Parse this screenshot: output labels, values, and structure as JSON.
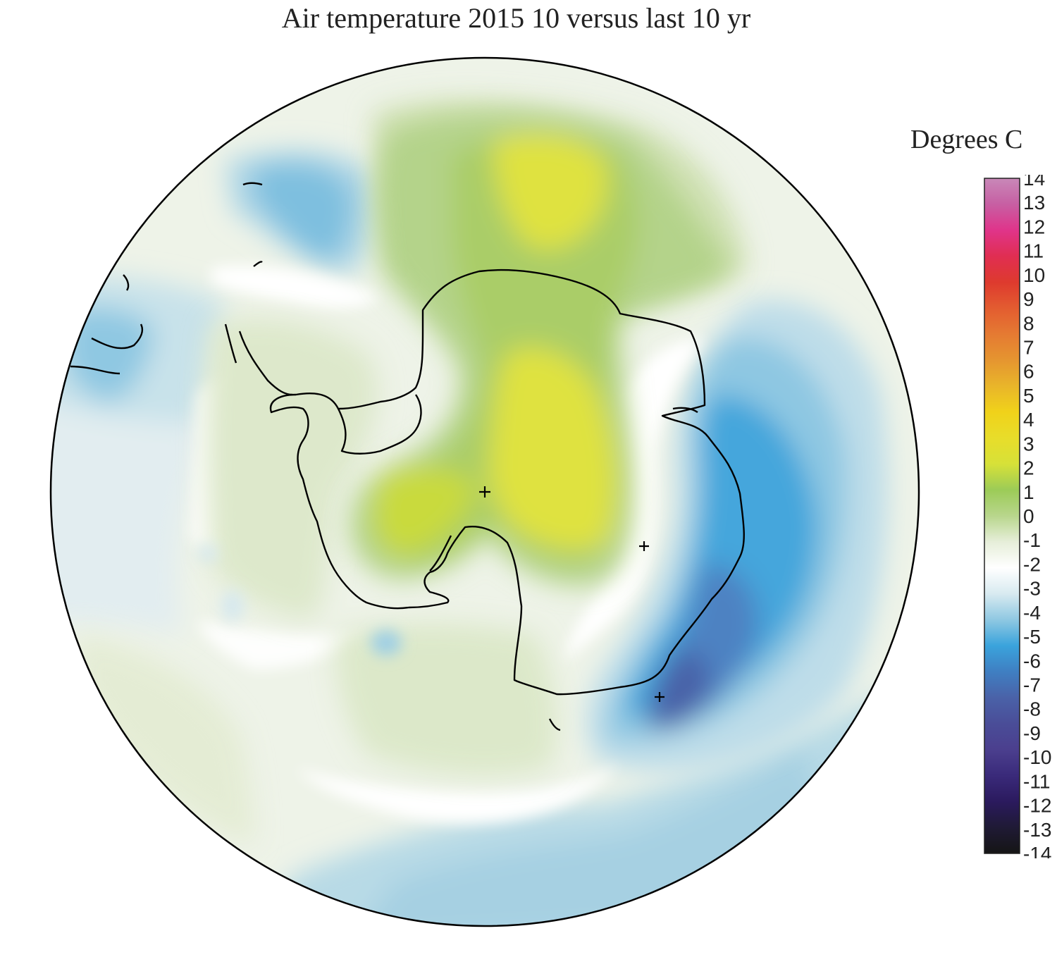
{
  "title": "Air temperature 2015 10 versus last 10 yr",
  "legend": {
    "title": "Degrees C",
    "ticks": [
      "14",
      "13",
      "12",
      "11",
      "10",
      "9",
      "8",
      "7",
      "6",
      "5",
      "4",
      "3",
      "2",
      "1",
      "0",
      "-1",
      "-2",
      "-3",
      "-4",
      "-5",
      "-6",
      "-7",
      "-8",
      "-9",
      "-10",
      "-11",
      "-12",
      "-13",
      "-14"
    ],
    "range": [
      -14,
      14
    ],
    "colors": [
      "#151515",
      "#1f1a35",
      "#2b1a5e",
      "#3a2a7a",
      "#4b3f8e",
      "#4a4d98",
      "#4a62a8",
      "#3f7fc2",
      "#3aa3dc",
      "#8fc8e2",
      "#d8eaf0",
      "#ffffff",
      "#e6eed9",
      "#b8d68c",
      "#9ccb57",
      "#d7e138",
      "#e8dd2a",
      "#f0d21a",
      "#e9b52a",
      "#e59530",
      "#e57a32",
      "#e35c30",
      "#de3a2e",
      "#e02e52",
      "#e0348a",
      "#c75fa3",
      "#c888b8"
    ]
  },
  "map": {
    "projection": "south-polar-stereographic",
    "features": [
      "antarctica-coastline",
      "south-america-tip",
      "grid-markers"
    ],
    "anomaly_regions": [
      {
        "name": "east-antarctica-warm",
        "value": 3
      },
      {
        "name": "weddell-cold",
        "value": -2
      },
      {
        "name": "indian-ocean-cold",
        "value": -4
      },
      {
        "name": "pacific-cool",
        "value": -1
      },
      {
        "name": "ross-sea-slight-warm",
        "value": 1
      }
    ],
    "colors": {
      "frame": "#000000",
      "warm_core": "#dde23a",
      "warm_mid": "#b7d47c",
      "warm_light": "#dfe9cc",
      "neutral": "#ffffff",
      "cool_light": "#bfdde8",
      "cool_mid": "#3aa3dc",
      "cool_deep": "#4a62a8"
    }
  }
}
